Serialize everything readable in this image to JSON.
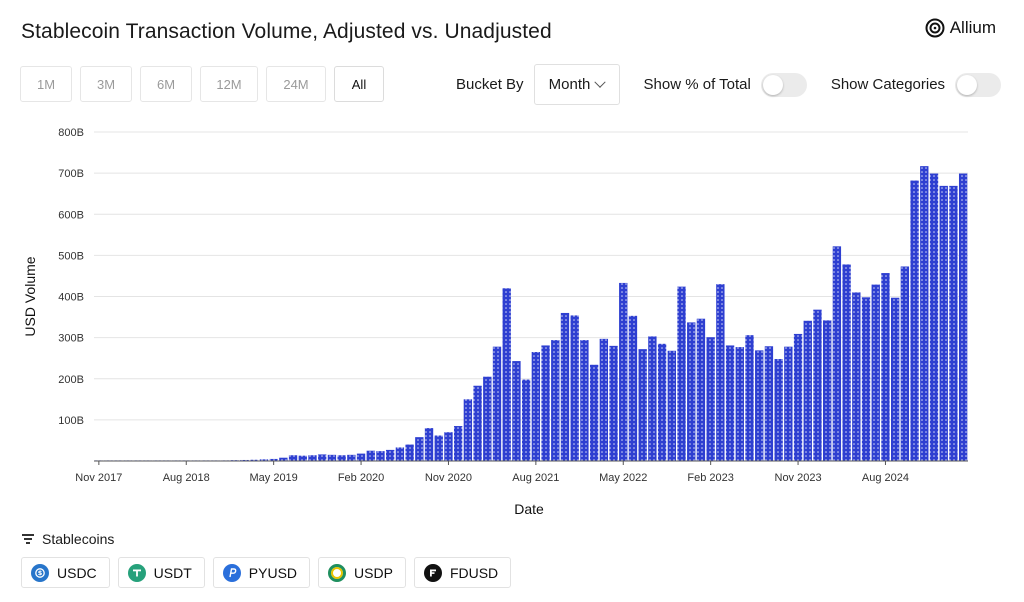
{
  "header": {
    "title": "Stablecoin Transaction Volume, Adjusted vs. Unadjusted",
    "brand": "Allium"
  },
  "time_ranges": [
    {
      "label": "1M",
      "active": false
    },
    {
      "label": "3M",
      "active": false
    },
    {
      "label": "6M",
      "active": false
    },
    {
      "label": "12M",
      "active": false
    },
    {
      "label": "24M",
      "active": false
    },
    {
      "label": "All",
      "active": true
    }
  ],
  "controls": {
    "bucket_label": "Bucket By",
    "bucket_value": "Month",
    "pct_label": "Show % of Total",
    "pct_on": false,
    "categories_label": "Show Categories",
    "categories_on": false
  },
  "legend": {
    "heading": "Stablecoins",
    "items": [
      {
        "label": "USDC",
        "icon": "usdc-icon",
        "color": "#2775ca"
      },
      {
        "label": "USDT",
        "icon": "usdt-icon",
        "color": "#26a17b"
      },
      {
        "label": "PYUSD",
        "icon": "pyusd-icon",
        "color": "#2a6fdb"
      },
      {
        "label": "USDP",
        "icon": "usdp-icon",
        "color": "#1f8f5f"
      },
      {
        "label": "FDUSD",
        "icon": "fdusd-icon",
        "color": "#111111"
      }
    ]
  },
  "chart_data": {
    "type": "bar",
    "xlabel": "Date",
    "ylabel": "USD Volume",
    "ylim": [
      0,
      800
    ],
    "y_unit": "B",
    "yticks": [
      "100B",
      "200B",
      "300B",
      "400B",
      "500B",
      "600B",
      "700B",
      "800B"
    ],
    "xtick_labels": [
      "Nov 2017",
      "Aug 2018",
      "May 2019",
      "Feb 2020",
      "Nov 2020",
      "Aug 2021",
      "May 2022",
      "Feb 2023",
      "Nov 2023",
      "Aug 2024"
    ],
    "bar_color": "#2e3fd1",
    "grid": true,
    "categories": [
      "Nov 2017",
      "Dec 2017",
      "Jan 2018",
      "Feb 2018",
      "Mar 2018",
      "Apr 2018",
      "May 2018",
      "Jun 2018",
      "Jul 2018",
      "Aug 2018",
      "Sep 2018",
      "Oct 2018",
      "Nov 2018",
      "Dec 2018",
      "Jan 2019",
      "Feb 2019",
      "Mar 2019",
      "Apr 2019",
      "May 2019",
      "Jun 2019",
      "Jul 2019",
      "Aug 2019",
      "Sep 2019",
      "Oct 2019",
      "Nov 2019",
      "Dec 2019",
      "Jan 2020",
      "Feb 2020",
      "Mar 2020",
      "Apr 2020",
      "May 2020",
      "Jun 2020",
      "Jul 2020",
      "Aug 2020",
      "Sep 2020",
      "Oct 2020",
      "Nov 2020",
      "Dec 2020",
      "Jan 2021",
      "Feb 2021",
      "Mar 2021",
      "Apr 2021",
      "May 2021",
      "Jun 2021",
      "Jul 2021",
      "Aug 2021",
      "Sep 2021",
      "Oct 2021",
      "Nov 2021",
      "Dec 2021",
      "Jan 2022",
      "Feb 2022",
      "Mar 2022",
      "Apr 2022",
      "May 2022",
      "Jun 2022",
      "Jul 2022",
      "Aug 2022",
      "Sep 2022",
      "Oct 2022",
      "Nov 2022",
      "Dec 2022",
      "Jan 2023",
      "Feb 2023",
      "Mar 2023",
      "Apr 2023",
      "May 2023",
      "Jun 2023",
      "Jul 2023",
      "Aug 2023",
      "Sep 2023",
      "Oct 2023",
      "Nov 2023",
      "Dec 2023",
      "Jan 2024",
      "Feb 2024",
      "Mar 2024",
      "Apr 2024",
      "May 2024",
      "Jun 2024",
      "Jul 2024",
      "Aug 2024",
      "Sep 2024",
      "Oct 2024",
      "Nov 2024",
      "Dec 2024",
      "Jan 2025",
      "Feb 2025",
      "Mar 2025",
      "Apr 2025"
    ],
    "values": [
      0.3,
      0.3,
      0.3,
      0.3,
      0.3,
      0.4,
      0.4,
      0.4,
      0.5,
      0.5,
      0.6,
      0.8,
      1,
      1.5,
      2,
      2.5,
      3,
      4,
      5,
      8,
      14,
      13,
      14,
      16,
      15,
      14,
      15,
      18,
      25,
      24,
      27,
      33,
      40,
      58,
      80,
      62,
      70,
      85,
      150,
      183,
      205,
      278,
      420,
      243,
      198,
      265,
      281,
      294,
      360,
      354,
      294,
      234,
      297,
      280,
      433,
      353,
      272,
      303,
      285,
      268,
      424,
      337,
      346,
      301,
      430,
      281,
      277,
      306,
      269,
      279,
      248,
      278,
      309,
      341,
      368,
      342,
      522,
      478,
      410,
      398,
      429,
      457,
      397,
      473,
      682,
      717,
      699,
      669,
      669,
      699
    ]
  }
}
